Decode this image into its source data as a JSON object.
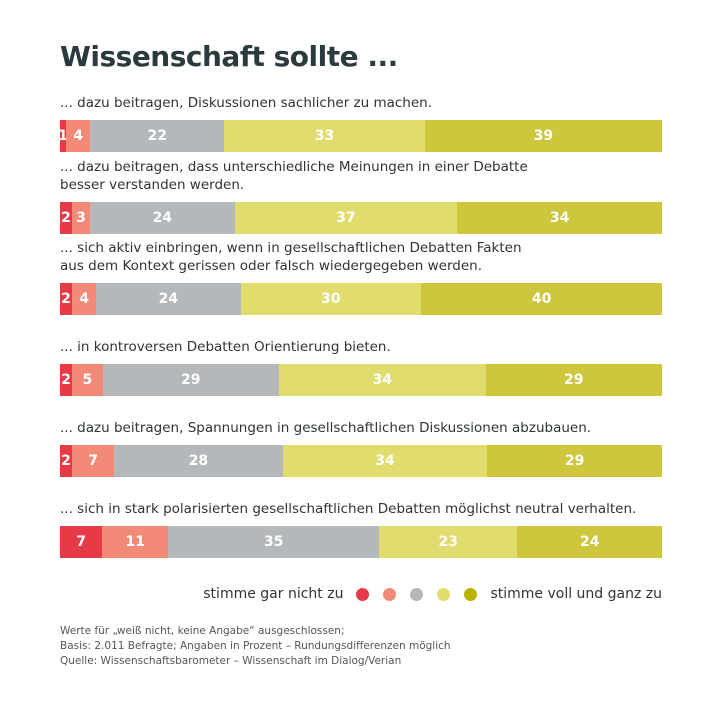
{
  "title": "Wissenschaft sollte ...",
  "chart_data": {
    "type": "bar",
    "orientation": "horizontal-stacked-100",
    "title": "Wissenschaft sollte ...",
    "categories": [
      "... dazu beitragen, Diskussionen sachlicher zu machen.",
      "... dazu beitragen, dass unterschiedliche Meinungen in einer Debatte besser verstanden werden.",
      "... sich aktiv einbringen, wenn in gesellschaftlichen Debatten Fakten aus dem Kontext gerissen oder falsch wiedergegeben werden.",
      "... in kontroversen Debatten Orientierung bieten.",
      "... dazu beitragen, Spannungen in gesellschaftlichen Diskussionen abzubauen.",
      "... sich in stark polarisierten gesellschaftlichen Debatten möglichst neutral verhalten."
    ],
    "category_lines": [
      [
        "... dazu beitragen, Diskussionen sachlicher zu machen."
      ],
      [
        "... dazu beitragen, dass unterschiedliche Meinungen in einer Debatte",
        "besser verstanden werden."
      ],
      [
        "... sich aktiv einbringen, wenn in gesellschaftlichen Debatten Fakten",
        "aus dem Kontext gerissen oder falsch wiedergegeben werden."
      ],
      [
        "... in kontroversen Debatten Orientierung bieten."
      ],
      [
        "... dazu beitragen, Spannungen in gesellschaftlichen Diskussionen abzubauen."
      ],
      [
        "... sich in stark polarisierten gesellschaftlichen Debatten möglichst neutral verhalten."
      ]
    ],
    "series": [
      {
        "values": [
          1,
          2,
          2,
          2,
          2,
          7
        ],
        "color": "#e63a46"
      },
      {
        "values": [
          4,
          3,
          4,
          5,
          7,
          11
        ],
        "color": "#f28a77"
      },
      {
        "values": [
          22,
          24,
          24,
          29,
          28,
          35
        ],
        "color": "#b4b8ba"
      },
      {
        "values": [
          33,
          37,
          30,
          34,
          34,
          23
        ],
        "color": "#e1dc6e"
      },
      {
        "values": [
          39,
          34,
          40,
          29,
          29,
          24
        ],
        "color": "#cec63c"
      }
    ],
    "legend": {
      "left_label": "stimme gar nicht zu",
      "right_label": "stimme voll und ganz zu",
      "dot_colors": [
        "#e63a46",
        "#f28a77",
        "#b4b8ba",
        "#e1dc6e",
        "#b9b300"
      ],
      "placement": "bottom-right"
    }
  },
  "footnotes": [
    "Werte für „weiß nicht, keine Angabe“ ausgeschlossen;",
    "Basis: 2.011 Befragte; Angaben in Prozent – Rundungsdifferenzen möglich",
    "Quelle: Wissenschaftsbarometer – Wissenschaft im Dialog/Verian"
  ]
}
